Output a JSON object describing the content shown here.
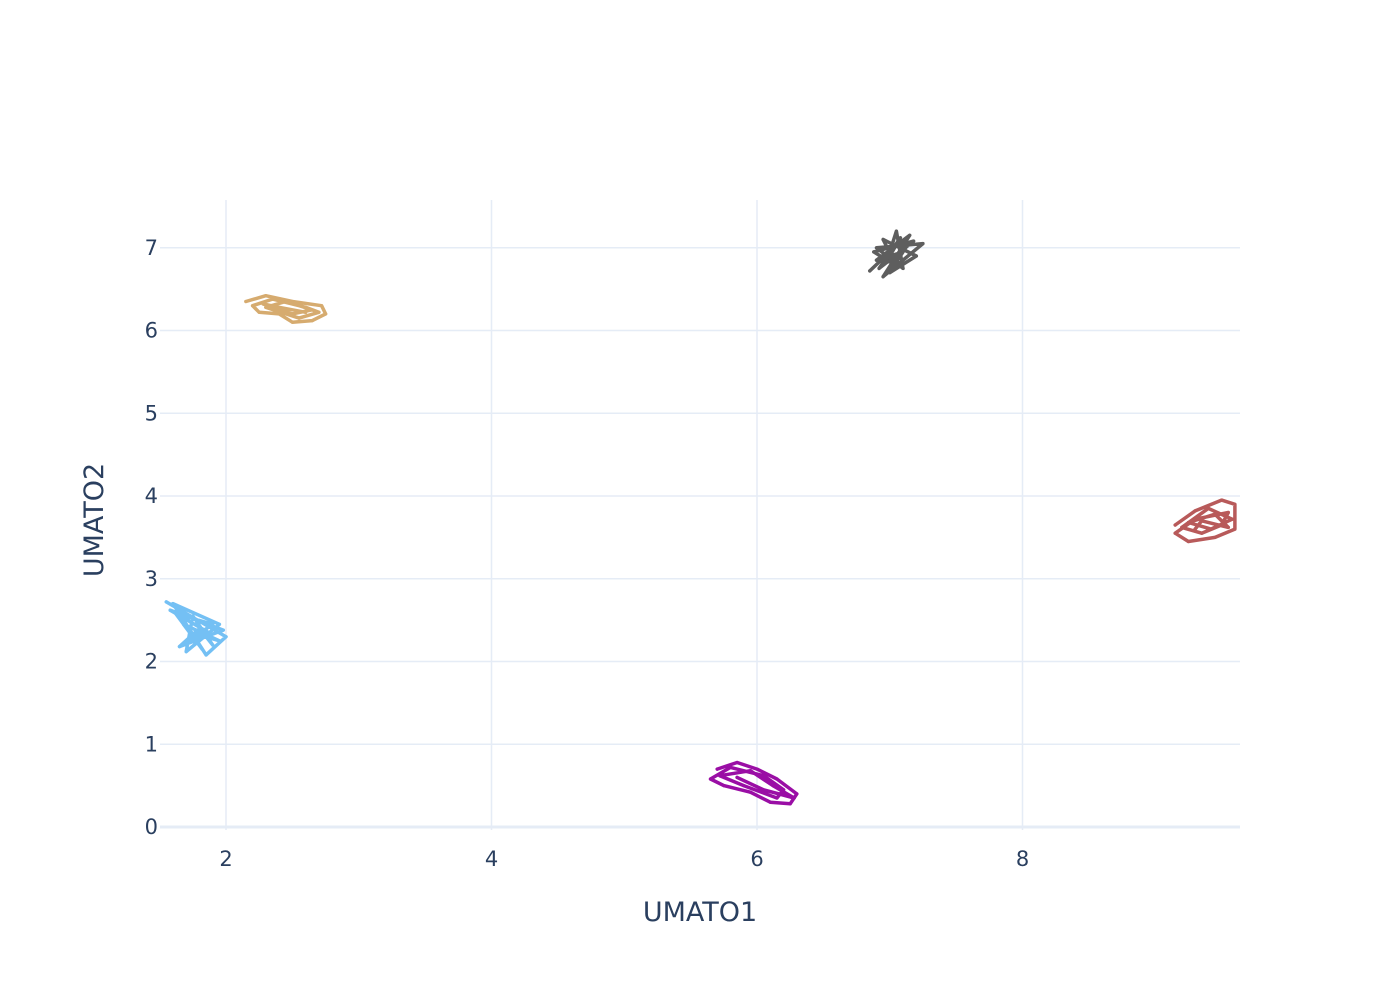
{
  "chart_data": {
    "type": "line",
    "xlabel": "UMATO1",
    "ylabel": "UMATO2",
    "xlim": [
      1.55,
      9.6
    ],
    "ylim": [
      -0.05,
      7.6
    ],
    "x_ticks": [
      2,
      4,
      6,
      8
    ],
    "y_ticks": [
      0,
      1,
      2,
      3,
      4,
      5,
      6,
      7
    ],
    "grid": true,
    "legend": "none",
    "series": [
      {
        "color": "#74c0f4",
        "points": [
          [
            1.55,
            2.72
          ],
          [
            2.0,
            2.3
          ],
          [
            1.85,
            2.08
          ],
          [
            1.6,
            2.7
          ],
          [
            1.95,
            2.45
          ],
          [
            1.7,
            2.12
          ],
          [
            1.75,
            2.55
          ],
          [
            1.9,
            2.2
          ],
          [
            1.8,
            2.4
          ],
          [
            1.65,
            2.18
          ],
          [
            1.98,
            2.38
          ],
          [
            1.58,
            2.62
          ],
          [
            1.88,
            2.34
          ],
          [
            1.72,
            2.25
          ],
          [
            1.9,
            2.45
          ],
          [
            1.62,
            2.58
          ],
          [
            1.82,
            2.15
          ],
          [
            1.68,
            2.45
          ],
          [
            1.95,
            2.25
          ],
          [
            1.78,
            2.33
          ],
          [
            1.85,
            2.38
          ]
        ]
      },
      {
        "color": "#d6ab6f",
        "points": [
          [
            2.15,
            6.35
          ],
          [
            2.3,
            6.42
          ],
          [
            2.5,
            6.35
          ],
          [
            2.72,
            6.3
          ],
          [
            2.75,
            6.2
          ],
          [
            2.65,
            6.12
          ],
          [
            2.5,
            6.1
          ],
          [
            2.4,
            6.2
          ],
          [
            2.25,
            6.22
          ],
          [
            2.2,
            6.3
          ],
          [
            2.35,
            6.38
          ],
          [
            2.6,
            6.28
          ],
          [
            2.7,
            6.22
          ],
          [
            2.55,
            6.15
          ],
          [
            2.3,
            6.28
          ],
          [
            2.45,
            6.35
          ],
          [
            2.65,
            6.25
          ],
          [
            2.5,
            6.2
          ],
          [
            2.28,
            6.32
          ],
          [
            2.4,
            6.28
          ],
          [
            2.6,
            6.22
          ]
        ]
      },
      {
        "color": "#9a0ea5",
        "points": [
          [
            5.7,
            0.7
          ],
          [
            5.85,
            0.78
          ],
          [
            6.0,
            0.7
          ],
          [
            6.15,
            0.58
          ],
          [
            6.3,
            0.4
          ],
          [
            6.25,
            0.28
          ],
          [
            6.1,
            0.3
          ],
          [
            5.95,
            0.42
          ],
          [
            5.75,
            0.5
          ],
          [
            5.65,
            0.58
          ],
          [
            5.8,
            0.72
          ],
          [
            6.05,
            0.62
          ],
          [
            6.2,
            0.45
          ],
          [
            6.15,
            0.35
          ],
          [
            5.9,
            0.5
          ],
          [
            5.72,
            0.62
          ],
          [
            5.95,
            0.68
          ],
          [
            6.12,
            0.5
          ],
          [
            6.28,
            0.35
          ],
          [
            6.05,
            0.45
          ],
          [
            5.85,
            0.6
          ]
        ]
      },
      {
        "color": "#5e5e5e",
        "points": [
          [
            6.85,
            6.72
          ],
          [
            7.0,
            6.95
          ],
          [
            7.05,
            7.2
          ],
          [
            7.1,
            6.75
          ],
          [
            6.9,
            7.0
          ],
          [
            7.25,
            7.05
          ],
          [
            6.95,
            6.65
          ],
          [
            7.15,
            7.15
          ],
          [
            6.9,
            6.85
          ],
          [
            7.1,
            6.95
          ],
          [
            7.0,
            6.7
          ],
          [
            7.2,
            6.9
          ],
          [
            6.95,
            7.1
          ],
          [
            7.05,
            6.78
          ],
          [
            6.88,
            6.95
          ],
          [
            7.18,
            7.08
          ],
          [
            7.0,
            6.85
          ],
          [
            7.12,
            7.0
          ],
          [
            6.92,
            6.75
          ],
          [
            7.08,
            7.12
          ],
          [
            7.0,
            6.9
          ]
        ]
      },
      {
        "color": "#b85a5a",
        "points": [
          [
            9.15,
            3.65
          ],
          [
            9.3,
            3.82
          ],
          [
            9.5,
            3.95
          ],
          [
            9.6,
            3.9
          ],
          [
            9.6,
            3.6
          ],
          [
            9.45,
            3.5
          ],
          [
            9.25,
            3.45
          ],
          [
            9.15,
            3.55
          ],
          [
            9.3,
            3.72
          ],
          [
            9.55,
            3.8
          ],
          [
            9.5,
            3.65
          ],
          [
            9.35,
            3.55
          ],
          [
            9.2,
            3.62
          ],
          [
            9.4,
            3.85
          ],
          [
            9.58,
            3.72
          ],
          [
            9.42,
            3.6
          ],
          [
            9.25,
            3.68
          ],
          [
            9.45,
            3.78
          ],
          [
            9.55,
            3.62
          ],
          [
            9.35,
            3.7
          ],
          [
            9.3,
            3.6
          ]
        ]
      }
    ]
  }
}
